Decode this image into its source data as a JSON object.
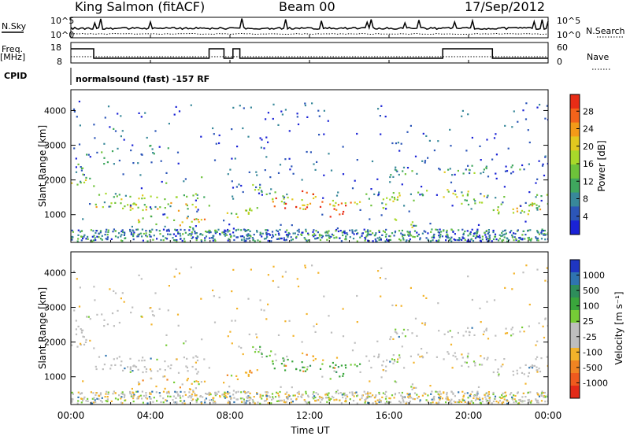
{
  "header": {
    "station": "King Salmon (fitACF)",
    "beam": "Beam 00",
    "date": "17/Sep/2012"
  },
  "top_panels": {
    "nsky_label": "N.Sky",
    "nsky_ticks": [
      "10^5",
      "10^0"
    ],
    "nsearch_label": "N.Search",
    "nsearch_ticks": [
      "10^5",
      "10^0"
    ],
    "freq_label": "Freq.",
    "freq_unit": "[MHz]",
    "freq_ticks": [
      "18",
      "8"
    ],
    "nave_label": "Nave",
    "nave_ticks": [
      "60",
      "0"
    ],
    "cpid_label": "CPID",
    "cpid_value": "normalsound (fast) -157 RF"
  },
  "chart_data": [
    {
      "type": "heatmap",
      "name": "power",
      "ylabel": "Slant Range [km]",
      "xlabel": "",
      "yticks": [
        "1000",
        "2000",
        "3000",
        "4000"
      ],
      "ylim": [
        200,
        4600
      ],
      "xlim": [
        0,
        24
      ],
      "colorbar": {
        "label": "Power [dB]",
        "ticks": [
          "4",
          "8",
          "12",
          "16",
          "20",
          "24",
          "28"
        ],
        "colors": [
          "#1a22d6",
          "#2c56b8",
          "#38889a",
          "#3fa75e",
          "#6dc23a",
          "#a8d82a",
          "#e3c81f",
          "#f49a18",
          "#f4631a",
          "#e82c16"
        ]
      }
    },
    {
      "type": "heatmap",
      "name": "velocity",
      "ylabel": "Slant Range [km]",
      "xlabel": "Time UT",
      "yticks": [
        "1000",
        "2000",
        "3000",
        "4000"
      ],
      "xticks": [
        "00:00",
        "04:00",
        "08:00",
        "12:00",
        "16:00",
        "20:00",
        "00:00"
      ],
      "ylim": [
        200,
        4600
      ],
      "xlim": [
        0,
        24
      ],
      "colorbar": {
        "label": "Velocity [m s⁻¹]",
        "ticks": [
          "1000",
          "500",
          "100",
          "25",
          "-25",
          "-100",
          "-500",
          "-1000"
        ],
        "colors": [
          "#1f36c2",
          "#2f74b0",
          "#2e8e5b",
          "#3aa63c",
          "#76cc36",
          "#bebebe",
          "#bebebe",
          "#f3b32a",
          "#f18422",
          "#ef5a1e",
          "#e32a18"
        ]
      }
    }
  ]
}
